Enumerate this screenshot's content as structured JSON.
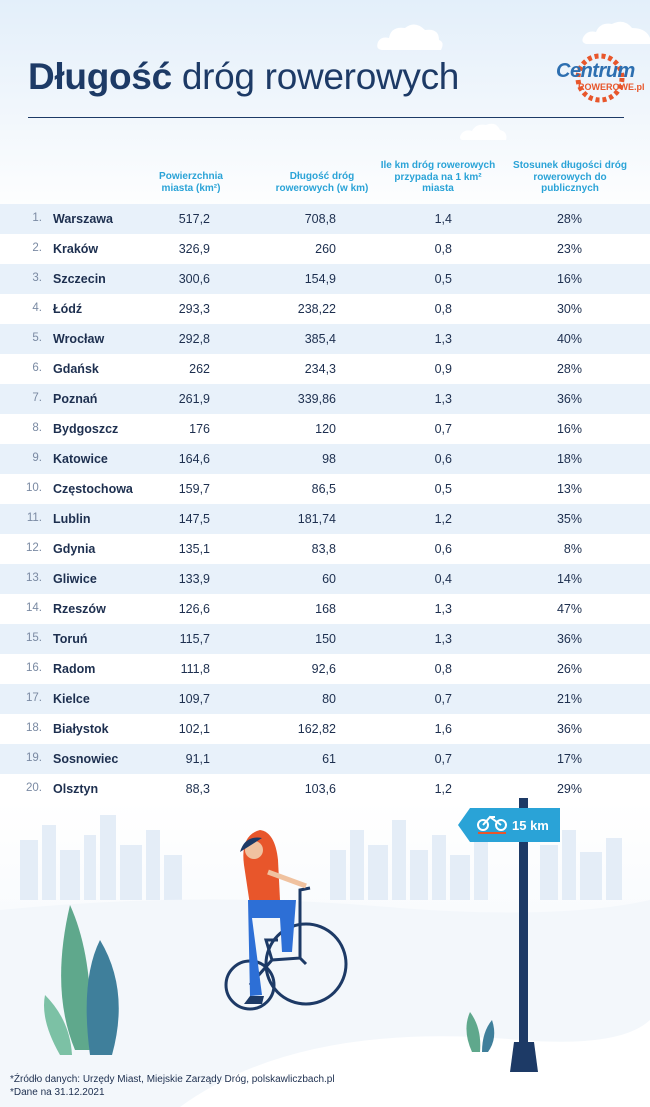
{
  "header": {
    "title_bold": "Długość",
    "title_rest": " dróg rowerowych",
    "logo_main": "Centrum",
    "logo_sub": "ROWEROWE.pl"
  },
  "columns": {
    "area": "Powierzchnia miasta (km²)",
    "length": "Długość dróg rowerowych (w km)",
    "ratio": "Ile km dróg rowerowych przypada na 1 km² miasta",
    "share": "Stosunek długości dróg rowerowych do publicznych"
  },
  "rows": [
    {
      "rank": "1.",
      "city": "Warszawa",
      "area": "517,2",
      "length": "708,8",
      "ratio": "1,4",
      "share": "28%"
    },
    {
      "rank": "2.",
      "city": "Kraków",
      "area": "326,9",
      "length": "260",
      "ratio": "0,8",
      "share": "23%"
    },
    {
      "rank": "3.",
      "city": "Szczecin",
      "area": "300,6",
      "length": "154,9",
      "ratio": "0,5",
      "share": "16%"
    },
    {
      "rank": "4.",
      "city": "Łódź",
      "area": "293,3",
      "length": "238,22",
      "ratio": "0,8",
      "share": "30%"
    },
    {
      "rank": "5.",
      "city": "Wrocław",
      "area": "292,8",
      "length": "385,4",
      "ratio": "1,3",
      "share": "40%"
    },
    {
      "rank": "6.",
      "city": "Gdańsk",
      "area": "262",
      "length": "234,3",
      "ratio": "0,9",
      "share": "28%"
    },
    {
      "rank": "7.",
      "city": "Poznań",
      "area": "261,9",
      "length": "339,86",
      "ratio": "1,3",
      "share": "36%"
    },
    {
      "rank": "8.",
      "city": "Bydgoszcz",
      "area": "176",
      "length": "120",
      "ratio": "0,7",
      "share": "16%"
    },
    {
      "rank": "9.",
      "city": "Katowice",
      "area": "164,6",
      "length": "98",
      "ratio": "0,6",
      "share": "18%"
    },
    {
      "rank": "10.",
      "city": "Częstochowa",
      "area": "159,7",
      "length": "86,5",
      "ratio": "0,5",
      "share": "13%"
    },
    {
      "rank": "11.",
      "city": "Lublin",
      "area": "147,5",
      "length": "181,74",
      "ratio": "1,2",
      "share": "35%"
    },
    {
      "rank": "12.",
      "city": "Gdynia",
      "area": "135,1",
      "length": "83,8",
      "ratio": "0,6",
      "share": "8%"
    },
    {
      "rank": "13.",
      "city": "Gliwice",
      "area": "133,9",
      "length": "60",
      "ratio": "0,4",
      "share": "14%"
    },
    {
      "rank": "14.",
      "city": "Rzeszów",
      "area": "126,6",
      "length": "168",
      "ratio": "1,3",
      "share": "47%"
    },
    {
      "rank": "15.",
      "city": "Toruń",
      "area": "115,7",
      "length": "150",
      "ratio": "1,3",
      "share": "36%"
    },
    {
      "rank": "16.",
      "city": "Radom",
      "area": "111,8",
      "length": "92,6",
      "ratio": "0,8",
      "share": "26%"
    },
    {
      "rank": "17.",
      "city": "Kielce",
      "area": "109,7",
      "length": "80",
      "ratio": "0,7",
      "share": "21%"
    },
    {
      "rank": "18.",
      "city": "Białystok",
      "area": "102,1",
      "length": "162,82",
      "ratio": "1,6",
      "share": "36%"
    },
    {
      "rank": "19.",
      "city": "Sosnowiec",
      "area": "91,1",
      "length": "61",
      "ratio": "0,7",
      "share": "17%"
    },
    {
      "rank": "20.",
      "city": "Olsztyn",
      "area": "88,3",
      "length": "103,6",
      "ratio": "1,2",
      "share": "29%"
    }
  ],
  "sign": {
    "label": "15 km"
  },
  "footer": {
    "source": "*Źródło danych: Urzędy Miast, Miejskie Zarządy Dróg, polskawliczbach.pl",
    "date": "*Dane na 31.12.2021"
  },
  "colors": {
    "accent": "#2aa3d7",
    "navy": "#1d3a66",
    "row_shade": "#e8f1fa",
    "orange": "#e8562b"
  }
}
